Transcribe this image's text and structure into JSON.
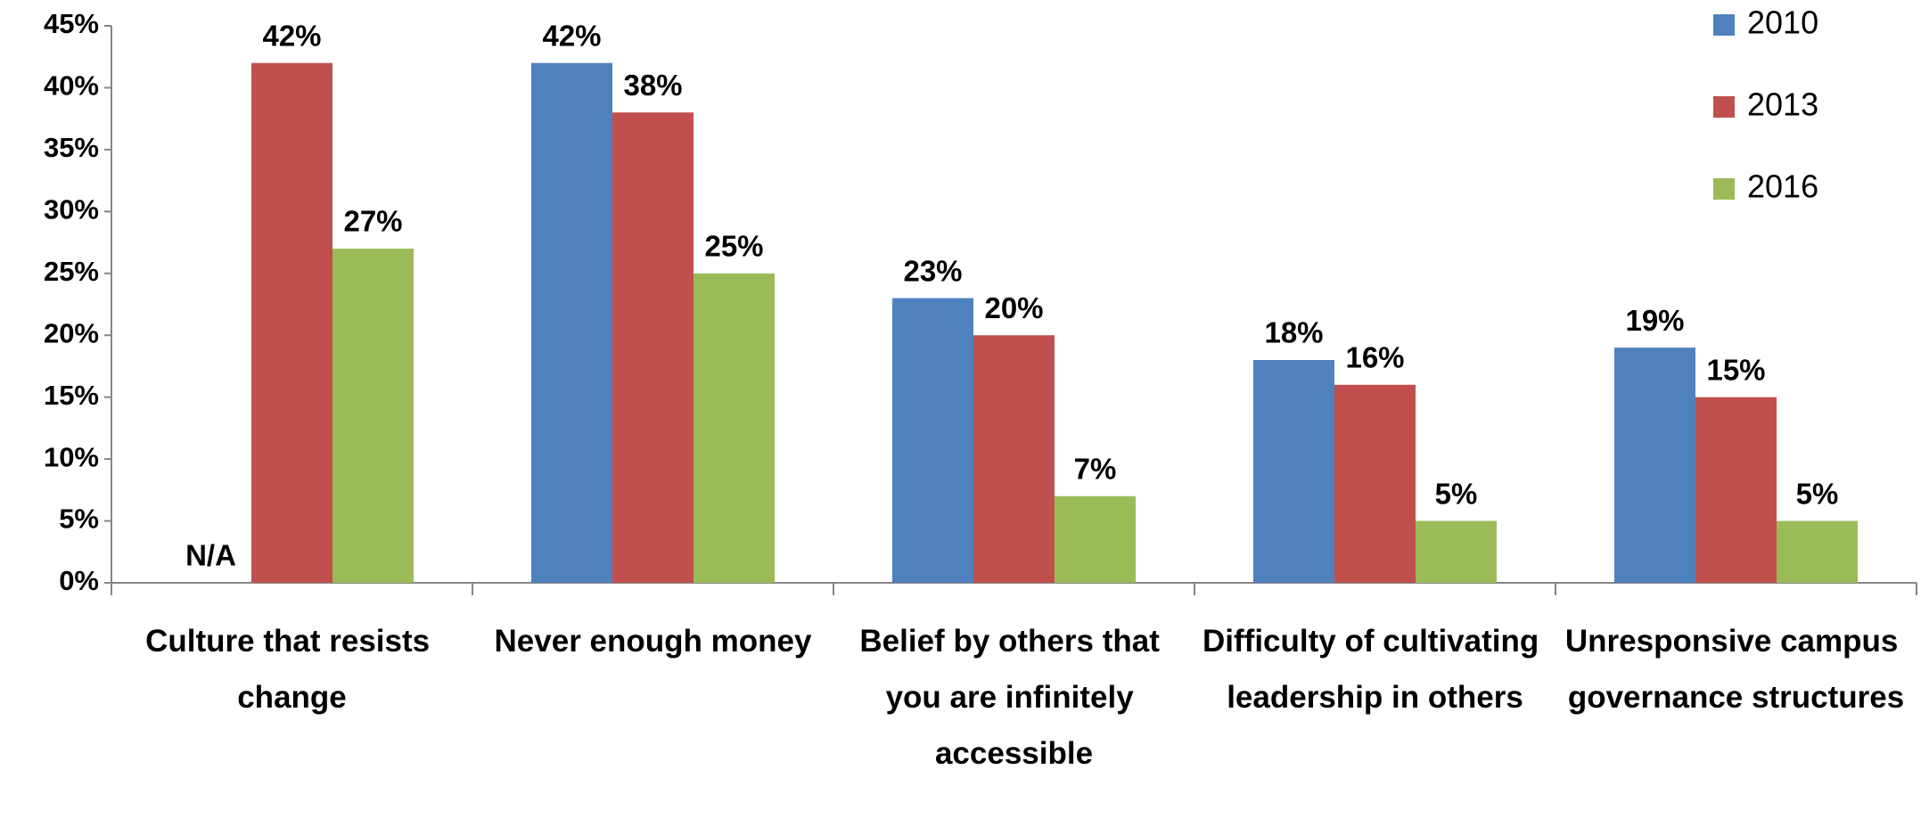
{
  "chart_data": {
    "type": "bar",
    "categories": [
      "Culture that resists change",
      "Never enough money",
      "Belief by others that you are infinitely accessible",
      "Difficulty of cultivating leadership in others",
      "Unresponsive campus governance structures"
    ],
    "series": [
      {
        "name": "2010",
        "color": "#4f81bd",
        "values": [
          null,
          42,
          23,
          18,
          19
        ],
        "value_labels": [
          "N/A",
          "42%",
          "23%",
          "18%",
          "19%"
        ]
      },
      {
        "name": "2013",
        "color": "#c0504d",
        "values": [
          42,
          38,
          20,
          16,
          15
        ],
        "value_labels": [
          "42%",
          "38%",
          "20%",
          "16%",
          "15%"
        ]
      },
      {
        "name": "2016",
        "color": "#9bbb59",
        "values": [
          27,
          25,
          7,
          5,
          5
        ],
        "value_labels": [
          "27%",
          "25%",
          "7%",
          "5%",
          "5%"
        ]
      }
    ],
    "ylim": [
      0,
      45
    ],
    "yticks": [
      {
        "value": 0,
        "label": "0%"
      },
      {
        "value": 5,
        "label": "5%"
      },
      {
        "value": 10,
        "label": "10%"
      },
      {
        "value": 15,
        "label": "15%"
      },
      {
        "value": 20,
        "label": "20%"
      },
      {
        "value": 25,
        "label": "25%"
      },
      {
        "value": 30,
        "label": "30%"
      },
      {
        "value": 35,
        "label": "35%"
      },
      {
        "value": 40,
        "label": "40%"
      },
      {
        "value": 45,
        "label": "45%"
      }
    ],
    "legend": "top-right"
  }
}
